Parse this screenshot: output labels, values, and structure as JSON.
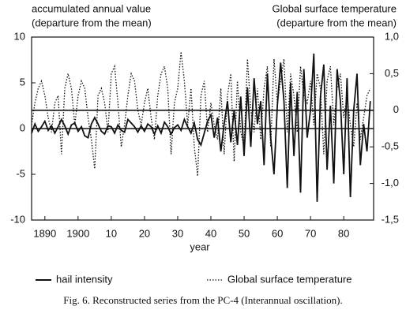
{
  "chart_data": {
    "type": "line",
    "ylabel": [
      "accumulated annual value",
      "(departure from the mean)"
    ],
    "y2label": [
      "Global surface temperature",
      "(departure from the mean)"
    ],
    "xlabel": "year",
    "caption": "Fig. 6. Reconstructed series from the PC-4 (Interannual oscillation).",
    "x": [
      1886,
      1887,
      1888,
      1889,
      1890,
      1891,
      1892,
      1893,
      1894,
      1895,
      1896,
      1897,
      1898,
      1899,
      1900,
      1901,
      1902,
      1903,
      1904,
      1905,
      1906,
      1907,
      1908,
      1909,
      1910,
      1911,
      1912,
      1913,
      1914,
      1915,
      1916,
      1917,
      1918,
      1919,
      1920,
      1921,
      1922,
      1923,
      1924,
      1925,
      1926,
      1927,
      1928,
      1929,
      1930,
      1931,
      1932,
      1933,
      1934,
      1935,
      1936,
      1937,
      1938,
      1939,
      1940,
      1941,
      1942,
      1943,
      1944,
      1945,
      1946,
      1947,
      1948,
      1949,
      1950,
      1951,
      1952,
      1953,
      1954,
      1955,
      1956,
      1957,
      1958,
      1959,
      1960,
      1961,
      1962,
      1963,
      1964,
      1965,
      1966,
      1967,
      1968,
      1969,
      1970,
      1971,
      1972,
      1973,
      1974,
      1975,
      1976,
      1977,
      1978,
      1979,
      1980,
      1981,
      1982,
      1983,
      1984,
      1985,
      1986,
      1987,
      1988
    ],
    "series": [
      {
        "name": "hail intensity",
        "color": "#111111",
        "dash": "solid",
        "axis": "y",
        "values": [
          -0.5,
          0.5,
          -0.3,
          0.2,
          0.8,
          -0.2,
          0.3,
          -0.5,
          0.2,
          1.0,
          0.3,
          -0.6,
          0.4,
          0.6,
          -0.3,
          0.2,
          -0.8,
          -1.0,
          0.5,
          1.2,
          0.5,
          -0.3,
          -0.6,
          0.3,
          0.2,
          -0.5,
          0.4,
          -0.2,
          -0.4,
          1.0,
          0.6,
          0.2,
          -0.4,
          0.3,
          -0.3,
          0.5,
          0.2,
          -0.6,
          0.3,
          -0.5,
          0.7,
          0.2,
          -0.6,
          0.1,
          0.4,
          -0.2,
          1.0,
          0.2,
          -0.5,
          0.6,
          -1.2,
          -1.8,
          -0.5,
          0.8,
          1.5,
          -1.0,
          1.2,
          -2.5,
          0.5,
          3.0,
          -1.5,
          2.0,
          -1.8,
          3.5,
          -3.0,
          4.5,
          -2.0,
          5.5,
          0.5,
          3.0,
          -4.0,
          6.0,
          -1.0,
          -5.0,
          2.5,
          7.2,
          3.0,
          -6.5,
          5.0,
          -3.0,
          4.0,
          -7.0,
          6.5,
          -1.0,
          2.0,
          8.2,
          -8.0,
          3.5,
          7.0,
          -4.5,
          2.5,
          -6.0,
          6.5,
          3.0,
          -5.0,
          5.5,
          -7.5,
          2.0,
          6.0,
          -4.0,
          0.5,
          -2.5,
          3.0
        ]
      },
      {
        "name": "Global surface temperature",
        "color": "#111111",
        "dash": "dotted",
        "axis": "y2",
        "values": [
          -0.2,
          0.1,
          0.3,
          0.4,
          0.2,
          -0.1,
          -0.3,
          0.1,
          0.2,
          -0.6,
          0.3,
          0.5,
          0.3,
          -0.2,
          0.2,
          0.4,
          0.3,
          -0.1,
          -0.4,
          -0.8,
          0.2,
          0.3,
          0.1,
          -0.3,
          0.5,
          0.6,
          0.1,
          -0.5,
          -0.2,
          0.2,
          0.5,
          0.4,
          0.0,
          -0.2,
          0.1,
          0.3,
          -0.1,
          -0.4,
          0.2,
          0.5,
          0.6,
          0.3,
          -0.6,
          0.1,
          0.3,
          0.8,
          0.4,
          -0.2,
          0.3,
          -0.5,
          -0.9,
          0.2,
          0.4,
          -0.3,
          0.1,
          -0.2,
          -0.4,
          0.3,
          -0.6,
          0.2,
          0.5,
          -0.7,
          0.4,
          -0.3,
          -0.5,
          0.7,
          0.0,
          -0.3,
          0.3,
          -0.4,
          0.3,
          0.6,
          -0.5,
          0.7,
          0.1,
          0.4,
          0.7,
          -0.3,
          0.5,
          0.2,
          -0.3,
          0.6,
          0.2,
          0.1,
          0.4,
          -0.2,
          0.5,
          0.3,
          -0.6,
          0.4,
          0.6,
          -0.2,
          0.3,
          0.5,
          -0.1,
          0.2,
          -0.2,
          -0.5,
          0.1,
          -0.4,
          -0.1,
          0.2,
          0.3
        ]
      }
    ],
    "xlim": [
      1886,
      1989
    ],
    "xticks": [
      1890,
      1900,
      {
        "value": 1910,
        "label": "10"
      },
      {
        "value": 1920,
        "label": "20"
      },
      {
        "value": 1930,
        "label": "30"
      },
      {
        "value": 1940,
        "label": "40"
      },
      {
        "value": 1950,
        "label": "50"
      },
      {
        "value": 1960,
        "label": "60"
      },
      {
        "value": 1970,
        "label": "70"
      },
      {
        "value": 1980,
        "label": "80"
      }
    ],
    "ylim": [
      -10,
      10
    ],
    "yticks": [
      -10,
      -5,
      0,
      5,
      10
    ],
    "y2lim": [
      -1.5,
      1.0
    ],
    "y2ticks": [
      {
        "value": -1.5,
        "label": "-1,5"
      },
      {
        "value": -1.0,
        "label": "-1,0"
      },
      {
        "value": -0.5,
        "label": "-0,5"
      },
      0,
      {
        "value": 0.5,
        "label": "0,5"
      },
      {
        "value": 1.0,
        "label": "1,0"
      }
    ],
    "grid": false
  }
}
